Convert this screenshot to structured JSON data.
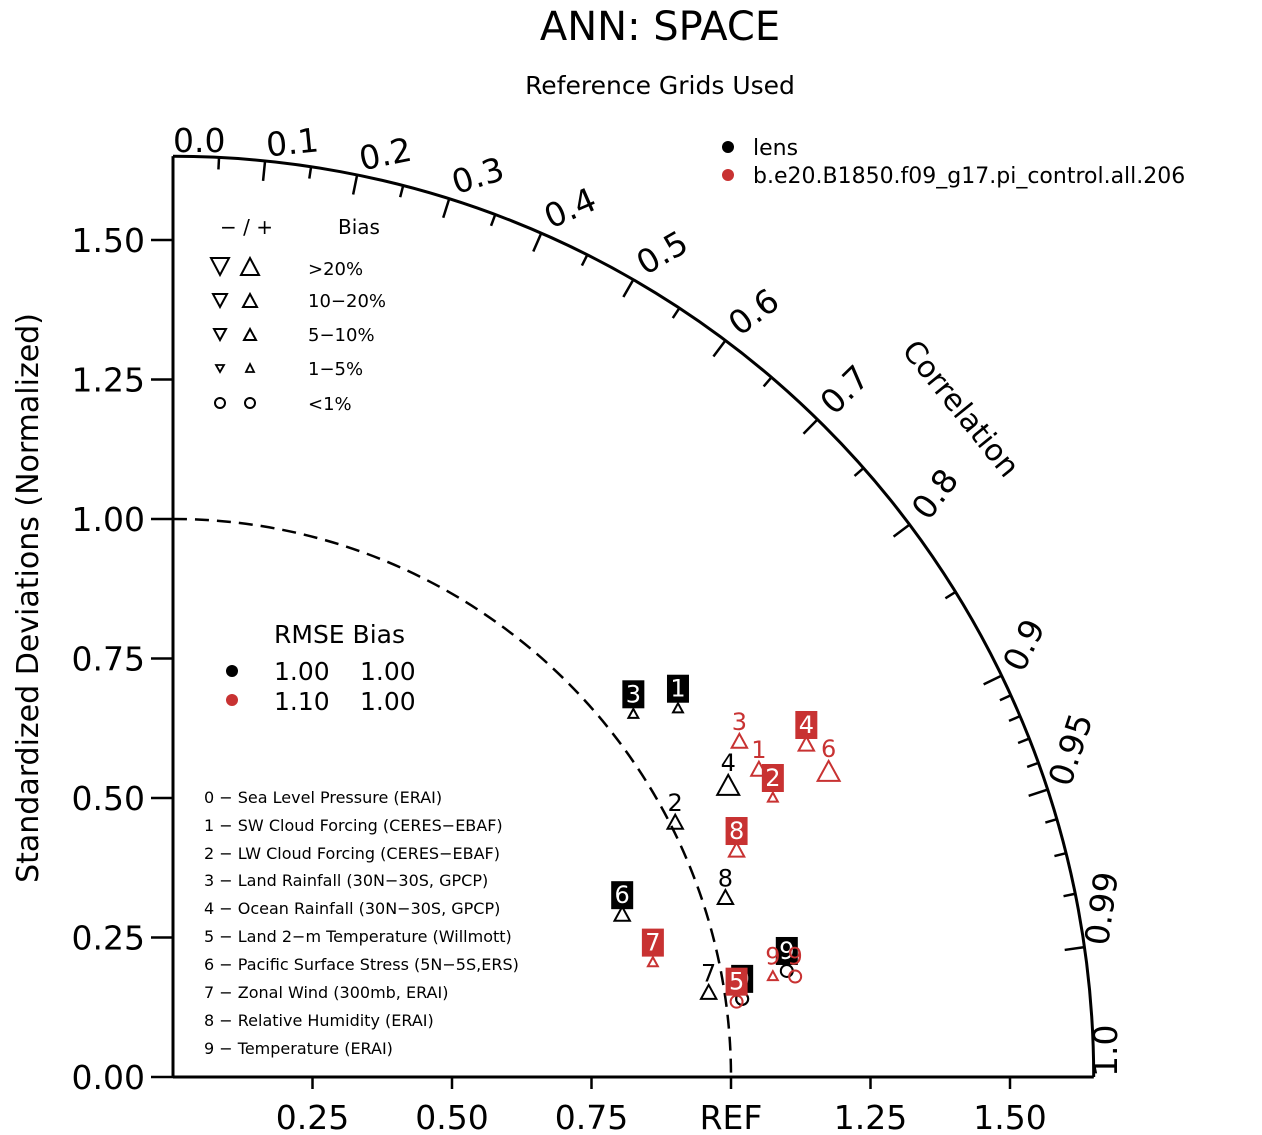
{
  "title": "ANN: SPACE",
  "subtitle": "Reference Grids Used",
  "ylabel": "Standardized Deviations (Normalized)",
  "corr_label": "Correlation",
  "colors": {
    "black": "#000000",
    "red": "#c83232",
    "label_bg_black": "#000000",
    "label_bg_red": "#c83232"
  },
  "legend_cases": [
    {
      "label": "lens",
      "color": "#000000"
    },
    {
      "label": "b.e20.B1850.f09_g17.pi_control.all.206",
      "color": "#c83232"
    }
  ],
  "bias_legend": {
    "header_sign": "− / +",
    "header_bias": "Bias",
    "rows": [
      ">20%",
      "10−20%",
      "5−10%",
      "1−5%",
      "<1%"
    ]
  },
  "rmse_legend": {
    "header": "RMSE Bias",
    "rows": [
      {
        "color": "#000000",
        "rmse": "1.00",
        "bias": "1.00"
      },
      {
        "color": "#c83232",
        "rmse": "1.10",
        "bias": "1.00"
      }
    ]
  },
  "variables": [
    "0 − Sea Level Pressure (ERAI)",
    "1 − SW Cloud Forcing (CERES−EBAF)",
    "2 − LW Cloud Forcing (CERES−EBAF)",
    "3 − Land Rainfall (30N−30S, GPCP)",
    "4 − Ocean Rainfall (30N−30S, GPCP)",
    "5 − Land 2−m Temperature (Willmott)",
    "6 − Pacific Surface Stress (5N−5S,ERS)",
    "7 − Zonal Wind (300mb, ERAI)",
    "8 − Relative Humidity (ERAI)",
    "9 − Temperature (ERAI)"
  ],
  "chart_data": {
    "type": "taylor",
    "title": "ANN: SPACE",
    "subtitle": "Reference Grids Used",
    "ylabel": "Standardized Deviations (Normalized)",
    "x_tick_labels": [
      "0.25",
      "0.50",
      "0.75",
      "REF",
      "1.25",
      "1.50"
    ],
    "x_tick_values": [
      0.25,
      0.5,
      0.75,
      1.0,
      1.25,
      1.5
    ],
    "y_tick_labels": [
      "0.00",
      "0.25",
      "0.50",
      "0.75",
      "1.00",
      "1.25",
      "1.50"
    ],
    "y_tick_values": [
      0,
      0.25,
      0.5,
      0.75,
      1.0,
      1.25,
      1.5
    ],
    "sd_max": 1.65,
    "corr_labels": [
      {
        "value": 0.0,
        "label": "0.0"
      },
      {
        "value": 0.1,
        "label": "0.1"
      },
      {
        "value": 0.2,
        "label": "0.2"
      },
      {
        "value": 0.3,
        "label": "0.3"
      },
      {
        "value": 0.4,
        "label": "0.4"
      },
      {
        "value": 0.5,
        "label": "0.5"
      },
      {
        "value": 0.6,
        "label": "0.6"
      },
      {
        "value": 0.7,
        "label": "0.7"
      },
      {
        "value": 0.8,
        "label": "0.8"
      },
      {
        "value": 0.9,
        "label": "0.9"
      },
      {
        "value": 0.95,
        "label": "0.95"
      },
      {
        "value": 0.99,
        "label": "0.99"
      },
      {
        "value": 1.0,
        "label": "1.0"
      }
    ],
    "minor_corr_ticks": [
      0.05,
      0.15,
      0.25,
      0.35,
      0.45,
      0.55,
      0.65,
      0.75,
      0.85,
      0.91,
      0.92,
      0.93,
      0.94,
      0.96,
      0.97,
      0.98
    ],
    "ref_arc_sd": 1.0,
    "series": [
      {
        "name": "lens",
        "color": "#000000",
        "points": [
          {
            "id": "0",
            "x": 1.02,
            "y": 0.14,
            "marker": "circle-small",
            "boxed": true
          },
          {
            "id": "1",
            "x": 0.905,
            "y": 0.66,
            "marker": "tri-up-small",
            "boxed": true
          },
          {
            "id": "2",
            "x": 0.9,
            "y": 0.455,
            "marker": "tri-up",
            "boxed": false
          },
          {
            "id": "3",
            "x": 0.825,
            "y": 0.65,
            "marker": "tri-up-small",
            "boxed": true
          },
          {
            "id": "4",
            "x": 0.995,
            "y": 0.52,
            "marker": "tri-up-large",
            "boxed": false
          },
          {
            "id": "5",
            "x": 1.02,
            "y": 0.14,
            "marker": "circle-small",
            "boxed": false
          },
          {
            "id": "6",
            "x": 0.805,
            "y": 0.29,
            "marker": "tri-up",
            "boxed": true
          },
          {
            "id": "7",
            "x": 0.96,
            "y": 0.15,
            "marker": "tri-up",
            "boxed": false
          },
          {
            "id": "8",
            "x": 0.99,
            "y": 0.32,
            "marker": "tri-up",
            "boxed": false
          },
          {
            "id": "9",
            "x": 1.1,
            "y": 0.19,
            "marker": "circle-small",
            "boxed": true
          }
        ]
      },
      {
        "name": "b.e20.B1850.f09_g17.pi_control.all.206",
        "color": "#c83232",
        "points": [
          {
            "id": "1",
            "x": 1.05,
            "y": 0.55,
            "marker": "tri-up",
            "boxed": false
          },
          {
            "id": "2",
            "x": 1.075,
            "y": 0.5,
            "marker": "tri-up-small",
            "boxed": true
          },
          {
            "id": "3",
            "x": 1.015,
            "y": 0.6,
            "marker": "tri-up",
            "boxed": false
          },
          {
            "id": "4",
            "x": 1.135,
            "y": 0.595,
            "marker": "tri-up",
            "boxed": true
          },
          {
            "id": "5",
            "x": 1.01,
            "y": 0.135,
            "marker": "circle-small",
            "boxed": true
          },
          {
            "id": "6",
            "x": 1.175,
            "y": 0.545,
            "marker": "tri-up-large",
            "boxed": false
          },
          {
            "id": "7",
            "x": 0.86,
            "y": 0.205,
            "marker": "tri-up-small",
            "boxed": true
          },
          {
            "id": "8",
            "x": 1.01,
            "y": 0.405,
            "marker": "tri-up",
            "boxed": true
          },
          {
            "id": "9",
            "x": 1.075,
            "y": 0.18,
            "marker": "tri-up-small",
            "boxed": false
          },
          {
            "id": "9",
            "x": 1.115,
            "y": 0.18,
            "marker": "circle-small",
            "boxed": false
          }
        ]
      }
    ]
  }
}
